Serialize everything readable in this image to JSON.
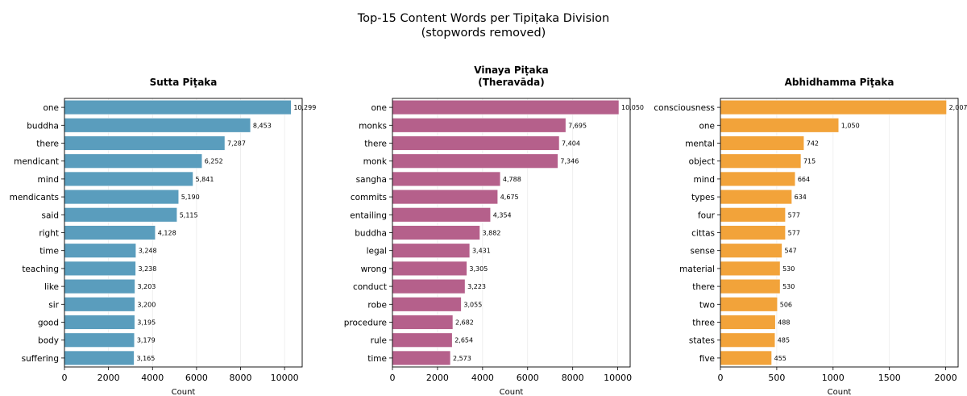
{
  "figure": {
    "title_line1": "Top-15 Content Words per Tipiṭaka Division",
    "title_line2": "(stopwords removed)"
  },
  "chart_data": [
    {
      "type": "bar",
      "orientation": "horizontal",
      "title": "Sutta Piṭaka",
      "xlabel": "Count",
      "ylabel": "",
      "xlim": [
        0,
        10800
      ],
      "xticks": [
        0,
        2000,
        4000,
        6000,
        8000,
        10000
      ],
      "grid": "vertical",
      "color": "#5a9dbd",
      "categories": [
        "one",
        "buddha",
        "there",
        "mendicant",
        "mind",
        "mendicants",
        "said",
        "right",
        "time",
        "teaching",
        "like",
        "sir",
        "good",
        "body",
        "suffering"
      ],
      "values": [
        10299,
        8453,
        7287,
        6252,
        5841,
        5190,
        5115,
        4128,
        3248,
        3238,
        3203,
        3200,
        3195,
        3179,
        3165
      ],
      "value_labels": [
        "10,299",
        "8,453",
        "7,287",
        "6,252",
        "5,841",
        "5,190",
        "5,115",
        "4,128",
        "3,248",
        "3,238",
        "3,203",
        "3,200",
        "3,195",
        "3,179",
        "3,165"
      ]
    },
    {
      "type": "bar",
      "orientation": "horizontal",
      "title": "Vinaya Piṭaka",
      "subtitle": "(Theravāda)",
      "xlabel": "Count",
      "ylabel": "",
      "xlim": [
        0,
        10550
      ],
      "xticks": [
        0,
        2000,
        4000,
        6000,
        8000,
        10000
      ],
      "grid": "vertical",
      "color": "#b5608b",
      "categories": [
        "one",
        "monks",
        "there",
        "monk",
        "sangha",
        "commits",
        "entailing",
        "buddha",
        "legal",
        "wrong",
        "conduct",
        "robe",
        "procedure",
        "rule",
        "time"
      ],
      "values": [
        10050,
        7695,
        7404,
        7346,
        4788,
        4675,
        4354,
        3882,
        3431,
        3305,
        3223,
        3055,
        2682,
        2654,
        2573
      ],
      "value_labels": [
        "10,050",
        "7,695",
        "7,404",
        "7,346",
        "4,788",
        "4,675",
        "4,354",
        "3,882",
        "3,431",
        "3,305",
        "3,223",
        "3,055",
        "2,682",
        "2,654",
        "2,573"
      ]
    },
    {
      "type": "bar",
      "orientation": "horizontal",
      "title": "Abhidhamma Piṭaka",
      "xlabel": "Count",
      "ylabel": "",
      "xlim": [
        0,
        2110
      ],
      "xticks": [
        0,
        500,
        1000,
        1500,
        2000
      ],
      "grid": "vertical",
      "color": "#f2a33a",
      "categories": [
        "consciousness",
        "one",
        "mental",
        "object",
        "mind",
        "types",
        "four",
        "cittas",
        "sense",
        "material",
        "there",
        "two",
        "three",
        "states",
        "five"
      ],
      "values": [
        2007,
        1050,
        742,
        715,
        664,
        634,
        577,
        577,
        547,
        530,
        530,
        506,
        488,
        485,
        455
      ],
      "value_labels": [
        "2,007",
        "1,050",
        "742",
        "715",
        "664",
        "634",
        "577",
        "577",
        "547",
        "530",
        "530",
        "506",
        "488",
        "485",
        "455"
      ]
    }
  ]
}
